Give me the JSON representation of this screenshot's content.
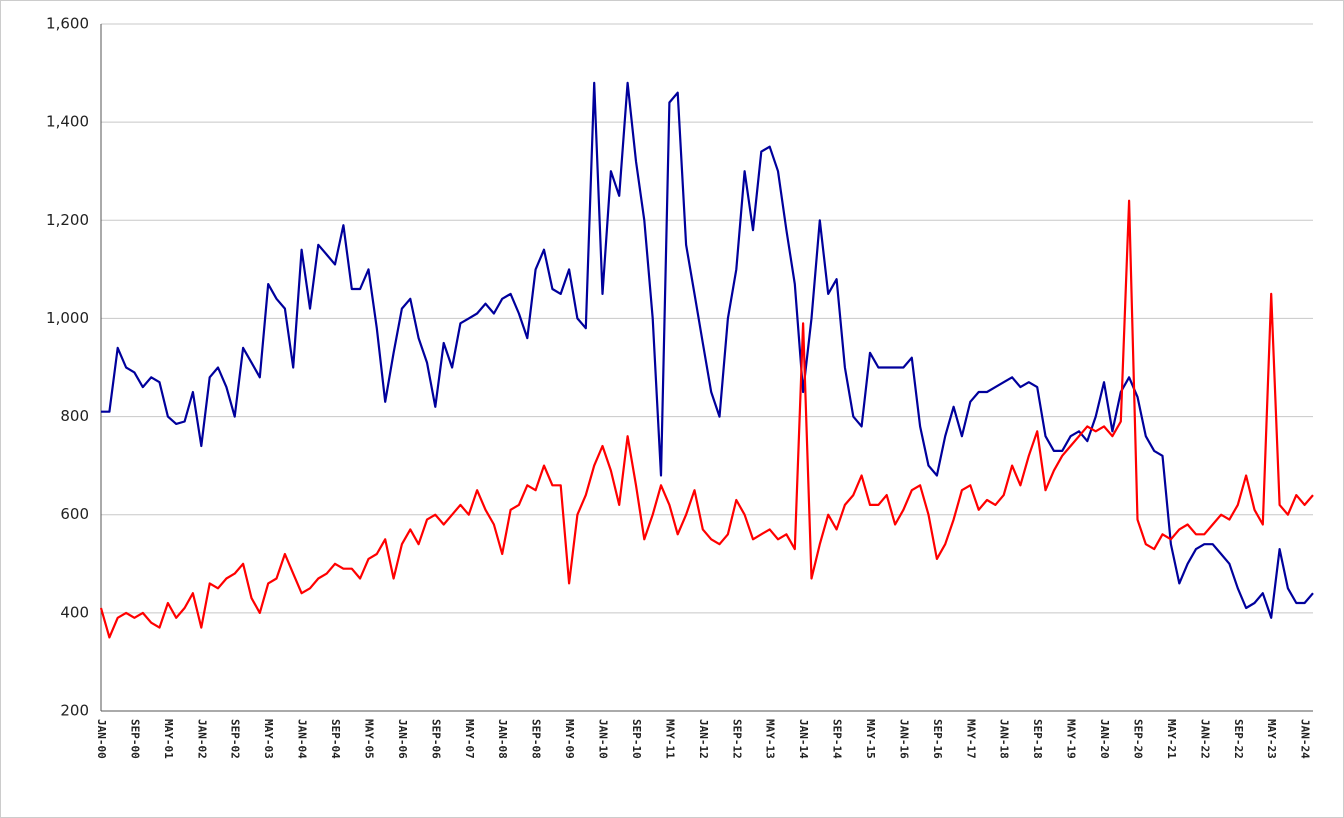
{
  "chart_data": {
    "type": "line",
    "categories": [
      "JAN-00",
      null,
      null,
      null,
      "SEP-00",
      null,
      null,
      null,
      "MAY-01",
      null,
      null,
      null,
      "JAN-02",
      null,
      null,
      null,
      "SEP-02",
      null,
      null,
      null,
      "MAY-03",
      null,
      null,
      null,
      "JAN-04",
      null,
      null,
      null,
      "SEP-04",
      null,
      null,
      null,
      "MAY-05",
      null,
      null,
      null,
      "JAN-06",
      null,
      null,
      null,
      "SEP-06",
      null,
      null,
      null,
      "MAY-07",
      null,
      null,
      null,
      "JAN-08",
      null,
      null,
      null,
      "SEP-08",
      null,
      null,
      null,
      "MAY-09",
      null,
      null,
      null,
      "JAN-10",
      null,
      null,
      null,
      "SEP-10",
      null,
      null,
      null,
      "MAY-11",
      null,
      null,
      null,
      "JAN-12",
      null,
      null,
      null,
      "SEP-12",
      null,
      null,
      null,
      "MAY-13",
      null,
      null,
      null,
      "JAN-14",
      null,
      null,
      null,
      "SEP-14",
      null,
      null,
      null,
      "MAY-15",
      null,
      null,
      null,
      "JAN-16",
      null,
      null,
      null,
      "SEP-16",
      null,
      null,
      null,
      "MAY-17",
      null,
      null,
      null,
      "JAN-18",
      null,
      null,
      null,
      "SEP-18",
      null,
      null,
      null,
      "MAY-19",
      null,
      null,
      null,
      "JAN-20",
      null,
      null,
      null,
      "SEP-20",
      null,
      null,
      null,
      "MAY-21",
      null,
      null,
      null,
      "JAN-22",
      null,
      null,
      null,
      "SEP-22",
      null,
      null,
      null,
      "MAY-23",
      null,
      null,
      null,
      "JAN-24",
      null
    ],
    "series": [
      {
        "color": "#00009c",
        "values": [
          810,
          810,
          940,
          900,
          890,
          860,
          880,
          870,
          800,
          785,
          790,
          850,
          740,
          880,
          900,
          860,
          800,
          940,
          910,
          880,
          1070,
          1040,
          1020,
          900,
          1140,
          1020,
          1150,
          1130,
          1110,
          1190,
          1060,
          1060,
          1100,
          980,
          830,
          930,
          1020,
          1040,
          960,
          910,
          820,
          950,
          900,
          990,
          1000,
          1010,
          1030,
          1010,
          1040,
          1050,
          1010,
          960,
          1100,
          1140,
          1060,
          1050,
          1100,
          1000,
          980,
          1480,
          1050,
          1300,
          1250,
          1480,
          1320,
          1200,
          1000,
          680,
          1440,
          1460,
          1150,
          1050,
          950,
          850,
          800,
          1000,
          1100,
          1300,
          1180,
          1340,
          1350,
          1300,
          1180,
          1070,
          850,
          1000,
          1200,
          1050,
          1080,
          900,
          800,
          780,
          930,
          900,
          900,
          900,
          900,
          920,
          780,
          700,
          680,
          760,
          820,
          760,
          830,
          850,
          850,
          860,
          870,
          880,
          860,
          870,
          860,
          760,
          730,
          730,
          760,
          770,
          750,
          800,
          870,
          770,
          850,
          880,
          840,
          760,
          730,
          720,
          540,
          460,
          500,
          530,
          540,
          540,
          520,
          500,
          450,
          410,
          420,
          440,
          390,
          530,
          450,
          420,
          420,
          440
        ]
      },
      {
        "color": "#ff0000",
        "values": [
          410,
          350,
          390,
          400,
          390,
          400,
          380,
          370,
          420,
          390,
          410,
          440,
          370,
          460,
          450,
          470,
          480,
          500,
          430,
          400,
          460,
          470,
          520,
          480,
          440,
          450,
          470,
          480,
          500,
          490,
          490,
          470,
          510,
          520,
          550,
          470,
          540,
          570,
          540,
          590,
          600,
          580,
          600,
          620,
          600,
          650,
          610,
          580,
          520,
          610,
          620,
          660,
          650,
          700,
          660,
          660,
          460,
          600,
          640,
          700,
          740,
          690,
          620,
          760,
          660,
          550,
          600,
          660,
          620,
          560,
          600,
          650,
          570,
          550,
          540,
          560,
          630,
          600,
          550,
          560,
          570,
          550,
          560,
          530,
          990,
          470,
          540,
          600,
          570,
          620,
          640,
          680,
          620,
          620,
          640,
          580,
          610,
          650,
          660,
          600,
          510,
          540,
          590,
          650,
          660,
          610,
          630,
          620,
          640,
          700,
          660,
          720,
          770,
          650,
          690,
          720,
          740,
          760,
          780,
          770,
          780,
          760,
          790,
          1240,
          590,
          540,
          530,
          560,
          550,
          570,
          580,
          560,
          560,
          580,
          600,
          590,
          620,
          680,
          610,
          580,
          1050,
          620,
          600,
          640,
          620,
          640
        ]
      }
    ],
    "ylim": [
      200,
      1600
    ],
    "yticks": [
      200,
      400,
      600,
      800,
      {
        "value": 1000,
        "label": "1,000"
      },
      {
        "value": 1200,
        "label": "1,200"
      },
      {
        "value": 1400,
        "label": "1,400"
      },
      {
        "value": 1600,
        "label": "1,600"
      }
    ],
    "grid": true
  }
}
